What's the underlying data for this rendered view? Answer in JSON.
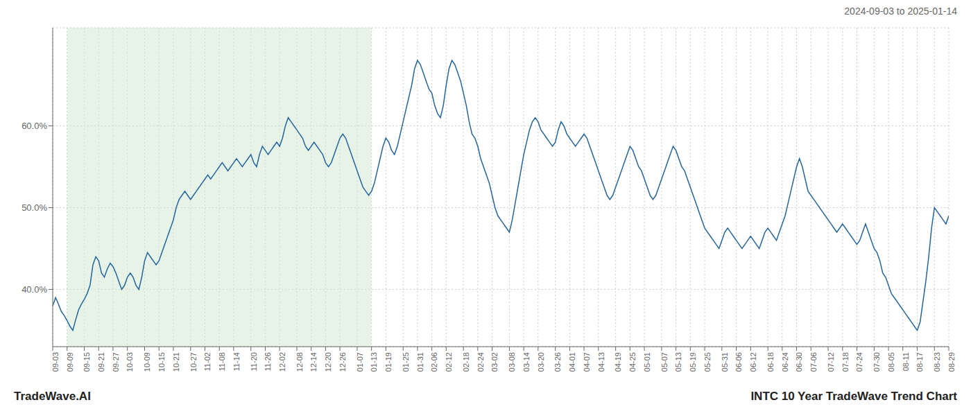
{
  "chart_data": {
    "type": "line",
    "title": "INTC 10 Year TradeWave Trend Chart",
    "subtitle": "2024-09-03 to 2025-01-14",
    "annotations": [
      "TradeWave.AI"
    ],
    "color": "#2265a0",
    "grid": true,
    "ylim": [
      33.0,
      72.0
    ],
    "yticks": [
      {
        "value": 40.0,
        "label": "40.0%"
      },
      {
        "value": 50.0,
        "label": "50.0%"
      },
      {
        "value": 60.0,
        "label": "60.0%"
      }
    ],
    "shade": {
      "from": "09-09",
      "to": "01-13",
      "color": "#d4ead4"
    },
    "categories": [
      "09-03",
      null,
      null,
      null,
      null,
      "09-09",
      null,
      null,
      null,
      null,
      null,
      "09-15",
      null,
      null,
      null,
      null,
      "09-21",
      null,
      null,
      null,
      null,
      "09-27",
      null,
      null,
      null,
      null,
      "10-03",
      null,
      null,
      null,
      null,
      null,
      "10-09",
      null,
      null,
      null,
      null,
      "10-15",
      null,
      null,
      null,
      null,
      "10-21",
      null,
      null,
      null,
      null,
      null,
      "10-27",
      null,
      null,
      null,
      null,
      "11-02",
      null,
      null,
      null,
      null,
      "11-08",
      null,
      null,
      null,
      null,
      "11-14",
      null,
      null,
      null,
      null,
      null,
      "11-20",
      null,
      null,
      null,
      null,
      "11-26",
      null,
      null,
      null,
      null,
      "12-02",
      null,
      null,
      null,
      null,
      null,
      "12-08",
      null,
      null,
      null,
      null,
      "12-14",
      null,
      null,
      null,
      null,
      "12-20",
      null,
      null,
      null,
      null,
      "12-26",
      null,
      null,
      null,
      null,
      null,
      "01-07",
      null,
      null,
      null,
      null,
      "01-13",
      null,
      null,
      null,
      null,
      "01-19",
      null,
      null,
      null,
      null,
      null,
      "01-25",
      null,
      null,
      null,
      null,
      "01-31",
      null,
      null,
      null,
      null,
      "02-06",
      null,
      null,
      null,
      null,
      "02-12",
      null,
      null,
      null,
      null,
      null,
      "02-18",
      null,
      null,
      null,
      null,
      "02-24",
      null,
      null,
      null,
      null,
      "03-02",
      null,
      null,
      null,
      null,
      null,
      "03-08",
      null,
      null,
      null,
      null,
      "03-14",
      null,
      null,
      null,
      null,
      "03-20",
      null,
      null,
      null,
      null,
      null,
      "03-26",
      null,
      null,
      null,
      null,
      "04-01",
      null,
      null,
      null,
      null,
      "04-07",
      null,
      null,
      null,
      null,
      "04-13",
      null,
      null,
      null,
      null,
      null,
      "04-19",
      null,
      null,
      null,
      null,
      "04-25",
      null,
      null,
      null,
      null,
      "05-01",
      null,
      null,
      null,
      null,
      null,
      "05-07",
      null,
      null,
      null,
      null,
      "05-13",
      null,
      null,
      null,
      null,
      "05-19",
      null,
      null,
      null,
      null,
      "05-25",
      null,
      null,
      null,
      null,
      null,
      "05-31",
      null,
      null,
      null,
      null,
      "06-06",
      null,
      null,
      null,
      null,
      "06-12",
      null,
      null,
      null,
      null,
      null,
      "06-18",
      null,
      null,
      null,
      null,
      "06-24",
      null,
      null,
      null,
      null,
      "06-30",
      null,
      null,
      null,
      null,
      "07-06",
      null,
      null,
      null,
      null,
      null,
      "07-12",
      null,
      null,
      null,
      null,
      "07-18",
      null,
      null,
      null,
      null,
      "07-24",
      null,
      null,
      null,
      null,
      null,
      "07-30",
      null,
      null,
      null,
      null,
      "08-05",
      null,
      null,
      null,
      null,
      "08-11",
      null,
      null,
      null,
      null,
      "08-17",
      null,
      null,
      null,
      null,
      null,
      "08-23",
      null,
      null,
      null,
      null,
      "08-29"
    ],
    "values": [
      38.0,
      39.0,
      38.2,
      37.3,
      36.8,
      36.2,
      35.5,
      35.0,
      36.3,
      37.5,
      38.2,
      38.8,
      39.5,
      40.5,
      43.0,
      44.0,
      43.5,
      42.0,
      41.5,
      42.5,
      43.2,
      42.8,
      42.0,
      41.0,
      40.0,
      40.5,
      41.5,
      42.0,
      41.5,
      40.5,
      40.0,
      41.5,
      43.5,
      44.5,
      44.0,
      43.5,
      43.0,
      43.5,
      44.5,
      45.5,
      46.5,
      47.5,
      48.5,
      50.0,
      51.0,
      51.5,
      52.0,
      51.5,
      51.0,
      51.5,
      52.0,
      52.5,
      53.0,
      53.5,
      54.0,
      53.5,
      54.0,
      54.5,
      55.0,
      55.5,
      55.0,
      54.5,
      55.0,
      55.5,
      56.0,
      55.5,
      55.0,
      55.5,
      56.0,
      56.5,
      55.5,
      55.0,
      56.5,
      57.5,
      57.0,
      56.5,
      57.0,
      57.5,
      58.0,
      57.5,
      58.5,
      60.0,
      61.0,
      60.5,
      60.0,
      59.5,
      59.0,
      58.5,
      57.5,
      57.0,
      57.5,
      58.0,
      57.5,
      57.0,
      56.5,
      55.5,
      55.0,
      55.5,
      56.5,
      57.5,
      58.5,
      59.0,
      58.5,
      57.5,
      56.5,
      55.5,
      54.5,
      53.5,
      52.5,
      52.0,
      51.5,
      52.0,
      53.0,
      54.5,
      56.0,
      57.5,
      58.5,
      58.0,
      57.0,
      56.5,
      57.5,
      59.0,
      60.5,
      62.0,
      63.5,
      65.0,
      67.0,
      68.0,
      67.5,
      66.5,
      65.5,
      64.5,
      64.0,
      62.5,
      61.5,
      61.0,
      62.5,
      65.0,
      67.0,
      68.0,
      67.5,
      66.5,
      65.5,
      64.0,
      62.5,
      60.5,
      59.0,
      58.5,
      57.5,
      56.0,
      55.0,
      54.0,
      53.0,
      51.5,
      50.0,
      49.0,
      48.5,
      48.0,
      47.5,
      47.0,
      48.5,
      50.5,
      52.5,
      54.5,
      56.5,
      58.0,
      59.5,
      60.5,
      61.0,
      60.5,
      59.5,
      59.0,
      58.5,
      58.0,
      57.5,
      58.0,
      59.5,
      60.5,
      60.0,
      59.0,
      58.5,
      58.0,
      57.5,
      58.0,
      58.5,
      59.0,
      58.5,
      57.5,
      56.5,
      55.5,
      54.5,
      53.5,
      52.5,
      51.5,
      51.0,
      51.5,
      52.5,
      53.5,
      54.5,
      55.5,
      56.5,
      57.5,
      57.0,
      56.0,
      55.0,
      54.5,
      53.5,
      52.5,
      51.5,
      51.0,
      51.5,
      52.5,
      53.5,
      54.5,
      55.5,
      56.5,
      57.5,
      57.0,
      56.0,
      55.0,
      54.5,
      53.5,
      52.5,
      51.5,
      50.5,
      49.5,
      48.5,
      47.5,
      47.0,
      46.5,
      46.0,
      45.5,
      45.0,
      46.0,
      47.0,
      47.5,
      47.0,
      46.5,
      46.0,
      45.5,
      45.0,
      45.5,
      46.0,
      46.5,
      46.0,
      45.5,
      45.0,
      46.0,
      47.0,
      47.5,
      47.0,
      46.5,
      46.0,
      47.0,
      48.0,
      49.0,
      50.5,
      52.0,
      53.5,
      55.0,
      56.0,
      55.0,
      53.5,
      52.0,
      51.5,
      51.0,
      50.5,
      50.0,
      49.5,
      49.0,
      48.5,
      48.0,
      47.5,
      47.0,
      47.5,
      48.0,
      47.5,
      47.0,
      46.5,
      46.0,
      45.5,
      46.0,
      47.0,
      48.0,
      47.0,
      46.0,
      45.0,
      44.5,
      43.5,
      42.0,
      41.5,
      40.5,
      39.5,
      39.0,
      38.5,
      38.0,
      37.5,
      37.0,
      36.5,
      36.0,
      35.5,
      35.0,
      36.0,
      38.5,
      41.0,
      44.0,
      47.5,
      50.0,
      49.5,
      49.0,
      48.5,
      48.0,
      49.0
    ]
  }
}
